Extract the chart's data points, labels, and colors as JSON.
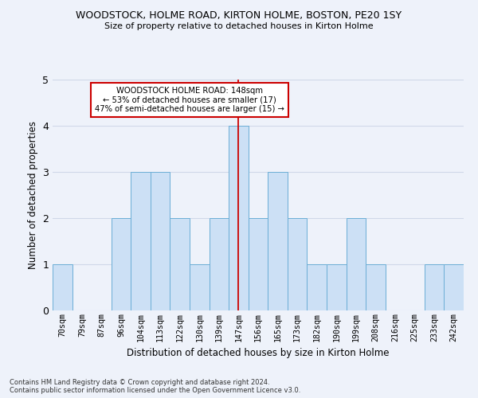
{
  "title": "WOODSTOCK, HOLME ROAD, KIRTON HOLME, BOSTON, PE20 1SY",
  "subtitle": "Size of property relative to detached houses in Kirton Holme",
  "xlabel": "Distribution of detached houses by size in Kirton Holme",
  "ylabel": "Number of detached properties",
  "categories": [
    "70sqm",
    "79sqm",
    "87sqm",
    "96sqm",
    "104sqm",
    "113sqm",
    "122sqm",
    "130sqm",
    "139sqm",
    "147sqm",
    "156sqm",
    "165sqm",
    "173sqm",
    "182sqm",
    "190sqm",
    "199sqm",
    "208sqm",
    "216sqm",
    "225sqm",
    "233sqm",
    "242sqm"
  ],
  "values": [
    1,
    0,
    0,
    2,
    3,
    3,
    2,
    1,
    2,
    4,
    2,
    3,
    2,
    1,
    1,
    2,
    1,
    0,
    0,
    1,
    1
  ],
  "bar_color": "#cce0f5",
  "bar_edge_color": "#6baed6",
  "ref_line_index": 9,
  "ref_line_color": "#cc0000",
  "annotation_text": "WOODSTOCK HOLME ROAD: 148sqm\n← 53% of detached houses are smaller (17)\n47% of semi-detached houses are larger (15) →",
  "annotation_box_color": "#ffffff",
  "annotation_box_edge_color": "#cc0000",
  "ylim": [
    0,
    5
  ],
  "yticks": [
    0,
    1,
    2,
    3,
    4,
    5
  ],
  "grid_color": "#d0d8e8",
  "background_color": "#eef2fa",
  "footer_line1": "Contains HM Land Registry data © Crown copyright and database right 2024.",
  "footer_line2": "Contains public sector information licensed under the Open Government Licence v3.0."
}
